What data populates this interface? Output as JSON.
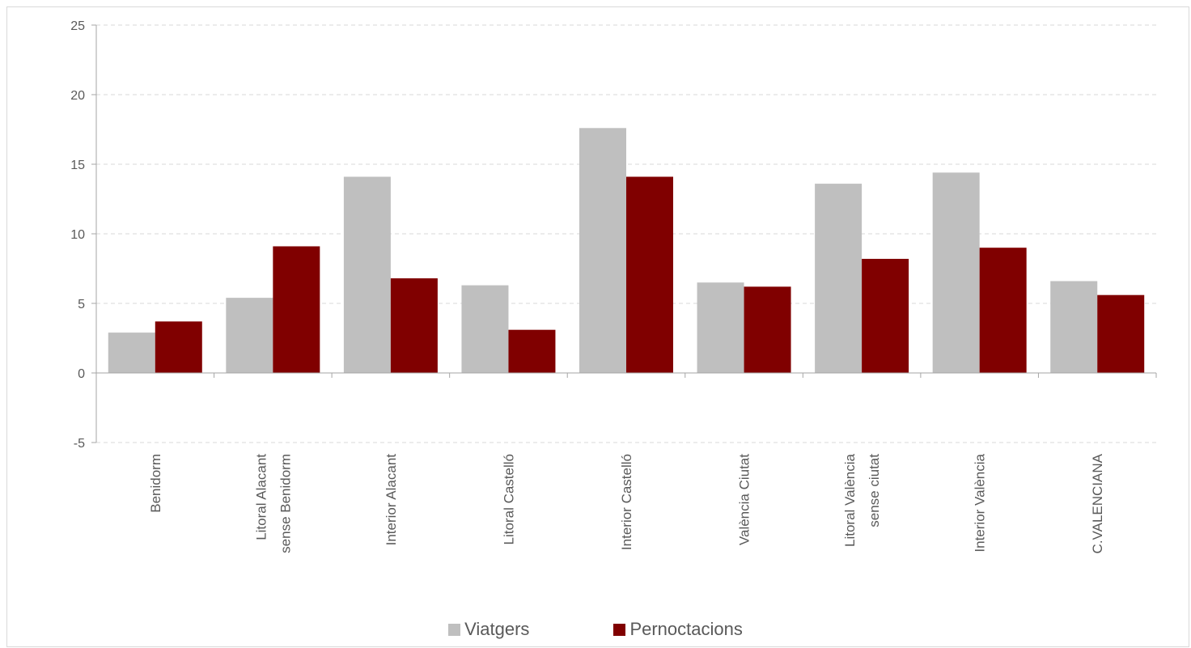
{
  "chart_data": {
    "type": "bar",
    "categories": [
      [
        "Benidorm"
      ],
      [
        "Litoral Alacant",
        "sense Benidorm"
      ],
      [
        "Interior Alacant"
      ],
      [
        "Litoral Castelló"
      ],
      [
        "Interior Castelló"
      ],
      [
        "València Ciutat"
      ],
      [
        "Litoral València",
        "sense ciutat"
      ],
      [
        "Interior València"
      ],
      [
        "C.VALENCIANA"
      ]
    ],
    "series": [
      {
        "name": "Viatgers",
        "color": "#bfbfbf",
        "values": [
          2.9,
          5.4,
          14.1,
          6.3,
          17.6,
          6.5,
          13.6,
          14.4,
          6.6
        ]
      },
      {
        "name": "Pernoctacions",
        "color": "#800000",
        "values": [
          3.7,
          9.1,
          6.8,
          3.1,
          14.1,
          6.2,
          8.2,
          9.0,
          5.6
        ]
      }
    ],
    "ylim": [
      -5,
      25
    ],
    "yticks": [
      -5,
      0,
      5,
      10,
      15,
      20,
      25
    ],
    "grid": true,
    "legend": "bottom"
  }
}
